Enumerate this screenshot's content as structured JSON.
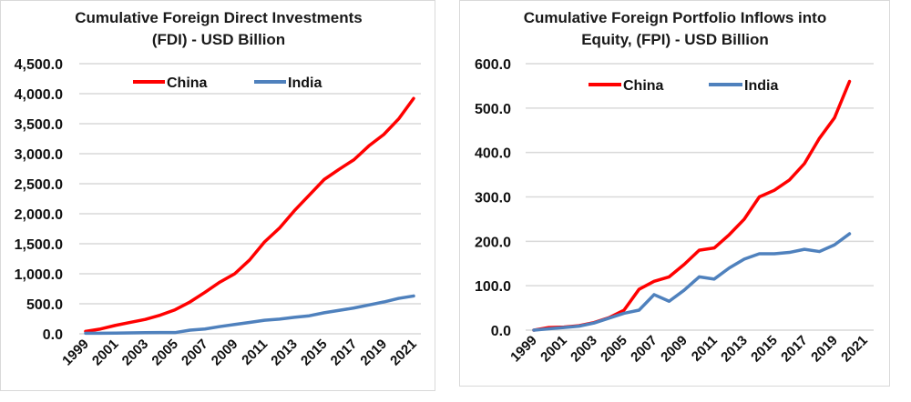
{
  "chart_data": [
    {
      "type": "line",
      "title": "Cumulative Foreign Direct Investments (FDI) - USD Billion",
      "title_lines": [
        "Cumulative Foreign Direct Investments",
        "(FDI) - USD Billion"
      ],
      "xlabel": "",
      "ylabel": "",
      "ylim": [
        0,
        4500
      ],
      "yticks": [
        "0.0",
        "500.0",
        "1,000.0",
        "1,500.0",
        "2,000.0",
        "2,500.0",
        "3,000.0",
        "3,500.0",
        "4,000.0",
        "4,500.0"
      ],
      "ytick_values": [
        0,
        500,
        1000,
        1500,
        2000,
        2500,
        3000,
        3500,
        4000,
        4500
      ],
      "x": [
        1999,
        2000,
        2001,
        2002,
        2003,
        2004,
        2005,
        2006,
        2007,
        2008,
        2009,
        2010,
        2011,
        2012,
        2013,
        2014,
        2015,
        2016,
        2017,
        2018,
        2019,
        2020,
        2021
      ],
      "xtick_labels": [
        "1999",
        "2001",
        "2003",
        "2005",
        "2007",
        "2009",
        "2011",
        "2013",
        "2015",
        "2017",
        "2019",
        "2021"
      ],
      "grid": true,
      "legend": "top-center",
      "series": [
        {
          "name": "China",
          "color": "#ff0000",
          "values": [
            40,
            80,
            140,
            190,
            240,
            310,
            400,
            530,
            690,
            860,
            1000,
            1230,
            1530,
            1760,
            2050,
            2310,
            2570,
            2740,
            2900,
            3130,
            3320,
            3580,
            3920
          ]
        },
        {
          "name": "India",
          "color": "#4f81bd",
          "values": [
            10,
            10,
            12,
            15,
            18,
            20,
            20,
            60,
            80,
            120,
            155,
            190,
            225,
            245,
            275,
            300,
            350,
            390,
            430,
            480,
            530,
            590,
            630
          ]
        }
      ]
    },
    {
      "type": "line",
      "title": "Cumulative Foreign Portfolio Inflows into Equity, (FPI) - USD Billion",
      "title_lines": [
        "Cumulative Foreign Portfolio Inflows into",
        "Equity, (FPI) - USD Billion"
      ],
      "xlabel": "",
      "ylabel": "",
      "ylim": [
        0,
        600
      ],
      "yticks": [
        "0.0",
        "100.0",
        "200.0",
        "300.0",
        "400.0",
        "500.0",
        "600.0"
      ],
      "ytick_values": [
        0,
        100,
        200,
        300,
        400,
        500,
        600
      ],
      "x": [
        1999,
        2000,
        2001,
        2002,
        2003,
        2004,
        2005,
        2006,
        2007,
        2008,
        2009,
        2010,
        2011,
        2012,
        2013,
        2014,
        2015,
        2016,
        2017,
        2018,
        2019,
        2020,
        2021
      ],
      "xtick_labels": [
        "1999",
        "2001",
        "2003",
        "2005",
        "2007",
        "2009",
        "2011",
        "2013",
        "2015",
        "2017",
        "2019",
        "2021"
      ],
      "grid": true,
      "legend": "top-center",
      "series": [
        {
          "name": "China",
          "color": "#ff0000",
          "values": [
            0,
            6,
            7,
            10,
            17,
            28,
            45,
            92,
            110,
            120,
            148,
            180,
            185,
            215,
            250,
            300,
            315,
            338,
            375,
            432,
            478,
            560,
            null
          ]
        },
        {
          "name": "India",
          "color": "#4f81bd",
          "values": [
            0,
            3,
            6,
            9,
            16,
            27,
            38,
            45,
            80,
            65,
            90,
            120,
            115,
            140,
            160,
            172,
            172,
            175,
            182,
            177,
            192,
            217,
            null
          ]
        }
      ]
    }
  ]
}
